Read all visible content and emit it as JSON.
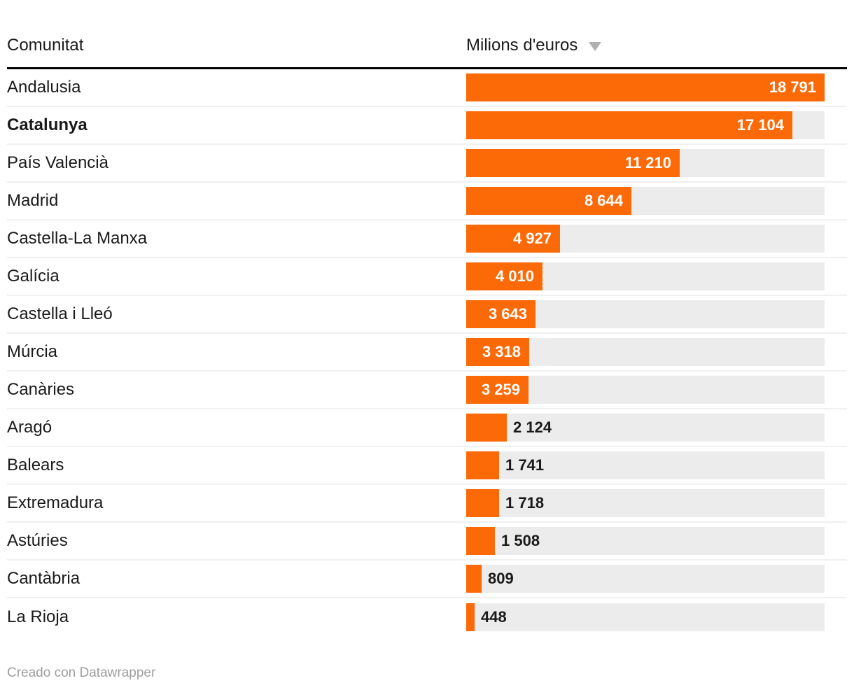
{
  "header": {
    "category_label": "Comunitat",
    "value_label": "Milions d'euros",
    "sort_icon": "triangle-down"
  },
  "footer": {
    "credit": "Creado con Datawrapper"
  },
  "colors": {
    "bar": "#fc6a07",
    "track": "#ececec",
    "text": "#1a1a1a",
    "value_inside": "#ffffff",
    "value_outside": "#1a1a1a",
    "separator": "#f0f0f0",
    "header_rule": "#000000",
    "sort_icon": "#b0b0b0",
    "credit": "#9e9e9e"
  },
  "emphasized_row": "Catalunya",
  "chart_data": {
    "type": "bar",
    "orientation": "horizontal",
    "title": "",
    "xlabel": "Milions d'euros",
    "ylabel": "Comunitat",
    "xlim": [
      0,
      18791
    ],
    "sorted": "descending",
    "grid": false,
    "legend": false,
    "categories": [
      "Andalusia",
      "Catalunya",
      "País Valencià",
      "Madrid",
      "Castella-La Manxa",
      "Galícia",
      "Castella i Lleó",
      "Múrcia",
      "Canàries",
      "Aragó",
      "Balears",
      "Extremadura",
      "Astúries",
      "Cantàbria",
      "La Rioja"
    ],
    "values": [
      18791,
      17104,
      11210,
      8644,
      4927,
      4010,
      3643,
      3318,
      3259,
      2124,
      1741,
      1718,
      1508,
      809,
      448
    ],
    "value_labels": [
      "18 791",
      "17 104",
      "11 210",
      "8 644",
      "4 927",
      "4 010",
      "3 643",
      "3 318",
      "3 259",
      "2 124",
      "1 741",
      "1 718",
      "1 508",
      "809",
      "448"
    ]
  }
}
